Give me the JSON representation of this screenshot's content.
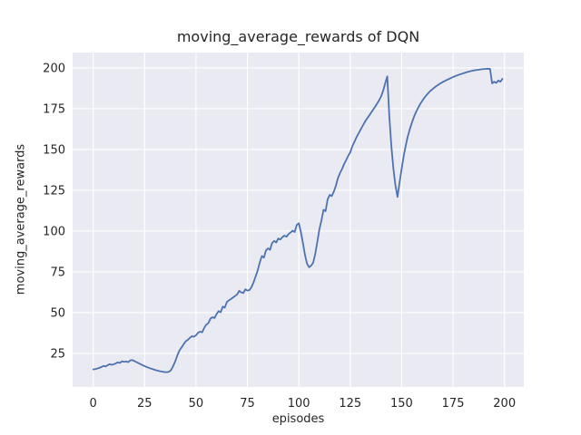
{
  "chart_data": {
    "type": "line",
    "title": "moving_average_rewards of DQN",
    "xlabel": "episodes",
    "ylabel": "moving_average_rewards",
    "x_ticks": [
      0,
      25,
      50,
      75,
      100,
      125,
      150,
      175,
      200
    ],
    "y_ticks": [
      25,
      50,
      75,
      100,
      125,
      150,
      175,
      200
    ],
    "xlim": [
      -10,
      209.4
    ],
    "ylim": [
      4.4,
      209.4
    ],
    "grid": true,
    "legend": "none",
    "style": "seaborn-darkgrid",
    "colors": {
      "figure_bg": "#ffffff",
      "axes_bg": "#eaeaf2",
      "gridline": "#ffffff",
      "line": "#4c72b0",
      "text": "#262626"
    },
    "series": [
      {
        "name": "moving_average_rewards",
        "x_start": 0,
        "x_step": 1,
        "values": [
          15.2,
          15.4,
          15.7,
          16.1,
          16.6,
          17.3,
          17.0,
          17.7,
          18.4,
          18.0,
          18.3,
          18.9,
          19.5,
          19.1,
          20.2,
          19.8,
          20.0,
          19.6,
          20.6,
          20.9,
          20.3,
          19.7,
          19.0,
          18.4,
          17.8,
          17.2,
          16.7,
          16.2,
          15.7,
          15.3,
          14.9,
          14.5,
          14.2,
          13.9,
          13.7,
          13.5,
          13.5,
          13.8,
          15.0,
          17.5,
          20.5,
          24.0,
          26.9,
          28.7,
          30.6,
          32.4,
          33.3,
          34.5,
          35.5,
          35.2,
          36.1,
          37.6,
          38.3,
          37.9,
          40.7,
          42.6,
          43.5,
          46.3,
          47.2,
          46.7,
          49.1,
          50.9,
          50.2,
          53.7,
          53.0,
          56.5,
          57.5,
          58.3,
          59.3,
          60.2,
          61.1,
          63.3,
          62.4,
          62.0,
          64.3,
          63.5,
          63.8,
          65.7,
          68.5,
          72.2,
          75.9,
          80.6,
          84.6,
          83.7,
          88.0,
          89.4,
          88.5,
          92.6,
          93.9,
          93.0,
          95.4,
          94.8,
          96.3,
          97.2,
          96.5,
          98.2,
          99.1,
          100.2,
          99.4,
          103.7,
          104.8,
          99.5,
          92.6,
          85.2,
          80.0,
          77.8,
          78.8,
          80.6,
          86.1,
          93.5,
          101.0,
          106.5,
          113.0,
          112.2,
          119.4,
          122.2,
          121.4,
          124.1,
          127.8,
          132.4,
          135.5,
          138.0,
          141.0,
          143.5,
          146.0,
          148.2,
          151.9,
          154.5,
          157.4,
          159.8,
          162.0,
          164.4,
          166.7,
          168.6,
          170.4,
          172.3,
          174.1,
          176.0,
          178.0,
          180.0,
          182.5,
          186.0,
          190.5,
          194.8,
          170.0,
          152.0,
          138.0,
          128.0,
          120.9,
          130.0,
          138.0,
          146.0,
          152.5,
          158.0,
          162.5,
          166.5,
          170.0,
          173.0,
          175.5,
          177.8,
          179.8,
          181.6,
          183.2,
          184.6,
          185.9,
          187.0,
          188.0,
          189.0,
          189.8,
          190.6,
          191.3,
          192.0,
          192.6,
          193.2,
          193.8,
          194.4,
          194.9,
          195.4,
          195.9,
          196.3,
          196.7,
          197.1,
          197.5,
          197.8,
          198.1,
          198.4,
          198.6,
          198.8,
          199.0,
          199.2,
          199.3,
          199.4,
          199.5,
          199.4,
          190.5,
          191.5,
          190.8,
          192.3,
          191.5,
          193.3
        ]
      }
    ]
  }
}
